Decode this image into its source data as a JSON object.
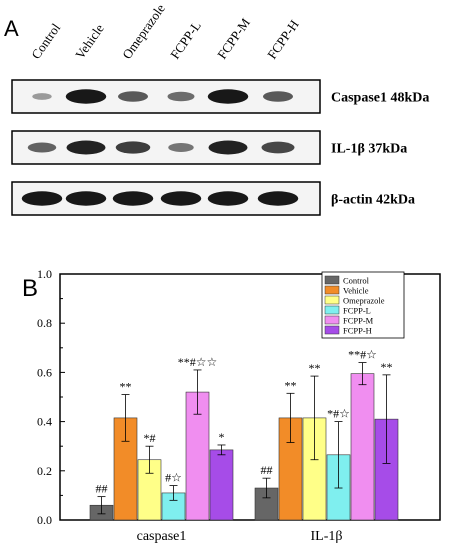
{
  "panel_a": {
    "label": "A",
    "lanes": [
      "Control",
      "Vehicle",
      "Omeprazole",
      "FCPP-L",
      "FCPP-M",
      "FCPP-H"
    ],
    "blots": [
      {
        "label": "Caspase1 48kDa",
        "intensity": [
          0.25,
          0.95,
          0.6,
          0.5,
          0.95,
          0.6
        ]
      },
      {
        "label": "IL-1β 37kDa",
        "intensity": [
          0.55,
          0.9,
          0.75,
          0.45,
          0.9,
          0.7
        ]
      },
      {
        "label": "β-actin 42kDa",
        "intensity": [
          0.95,
          0.95,
          0.95,
          0.95,
          0.95,
          0.95
        ]
      }
    ]
  },
  "chart_data": {
    "panel_label": "B",
    "type": "bar",
    "categories": [
      "caspase1",
      "IL-1β"
    ],
    "ylim": [
      0,
      1.0
    ],
    "yticks": [
      "0.0",
      "0.2",
      "0.4",
      "0.6",
      "0.8",
      "1.0"
    ],
    "legend_position": "top-right",
    "series": [
      {
        "name": "Control",
        "color": "#666666",
        "values": [
          0.06,
          0.13
        ],
        "errors": [
          0.035,
          0.04
        ],
        "annotations": [
          "##",
          "##"
        ]
      },
      {
        "name": "Vehicle",
        "color": "#f28c28",
        "values": [
          0.415,
          0.415
        ],
        "errors": [
          0.095,
          0.1
        ],
        "annotations": [
          "**",
          "**"
        ]
      },
      {
        "name": "Omeprazole",
        "color": "#ffff88",
        "values": [
          0.245,
          0.415
        ],
        "errors": [
          0.055,
          0.17
        ],
        "annotations": [
          "*#",
          "**"
        ]
      },
      {
        "name": "FCPP-L",
        "color": "#7fefef",
        "values": [
          0.11,
          0.265
        ],
        "errors": [
          0.03,
          0.135
        ],
        "annotations": [
          "#☆",
          "*#☆"
        ]
      },
      {
        "name": "FCPP-M",
        "color": "#f08ef0",
        "values": [
          0.52,
          0.595
        ],
        "errors": [
          0.09,
          0.045
        ],
        "annotations": [
          "**#☆☆",
          "**#☆"
        ]
      },
      {
        "name": "FCPP-H",
        "color": "#a64ce8",
        "values": [
          0.285,
          0.41
        ],
        "errors": [
          0.02,
          0.18
        ],
        "annotations": [
          "*",
          "**"
        ]
      }
    ]
  }
}
